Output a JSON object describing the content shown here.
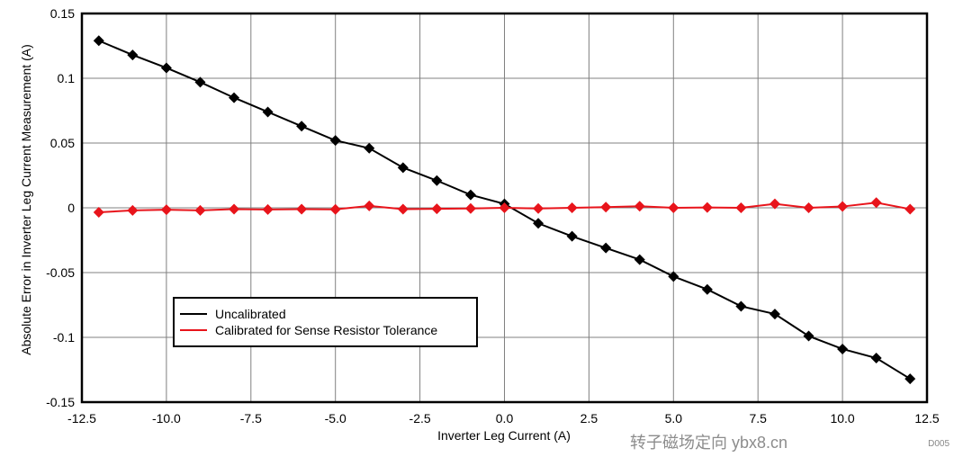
{
  "chart_data": {
    "type": "line",
    "title": "",
    "xlabel": "Inverter Leg Current (A)",
    "ylabel": "Absolute Error in Inverter Leg Current Measurement (A)",
    "xlim": [
      -12.5,
      12.5
    ],
    "ylim": [
      -0.15,
      0.15
    ],
    "xticks": [
      -12.5,
      -10.0,
      -7.5,
      -5.0,
      -2.5,
      0.0,
      2.5,
      5.0,
      7.5,
      10.0,
      12.5
    ],
    "xtick_labels": [
      "-12.5",
      "-10.0",
      "-7.5",
      "-5.0",
      "-2.5",
      "0.0",
      "2.5",
      "5.0",
      "7.5",
      "10.0",
      "12.5"
    ],
    "yticks": [
      0.15,
      0.1,
      0.05,
      0,
      -0.05,
      -0.1,
      -0.15
    ],
    "ytick_labels": [
      "0.15",
      "0.1",
      "0.05",
      "0",
      "-0.05",
      "-0.1",
      "-0.15"
    ],
    "grid": true,
    "legend_position": "lower-left",
    "x": [
      -12,
      -11,
      -10,
      -9,
      -8,
      -7,
      -6,
      -5,
      -4,
      -3,
      -2,
      -1,
      0,
      1,
      2,
      3,
      4,
      5,
      6,
      7,
      8,
      9,
      10,
      11,
      12
    ],
    "series": [
      {
        "name": "Uncalibrated",
        "color": "#000000",
        "marker": "diamond",
        "values": [
          0.129,
          0.118,
          0.108,
          0.097,
          0.085,
          0.074,
          0.063,
          0.052,
          0.046,
          0.031,
          0.021,
          0.01,
          0.003,
          -0.012,
          -0.022,
          -0.031,
          -0.04,
          -0.053,
          -0.063,
          -0.076,
          -0.082,
          -0.099,
          -0.109,
          -0.116,
          -0.132
        ]
      },
      {
        "name": "Calibrated for Sense Resistor Tolerance",
        "color": "#e8141b",
        "marker": "diamond",
        "values": [
          -0.0035,
          -0.002,
          -0.0015,
          -0.002,
          -0.001,
          -0.0013,
          -0.001,
          -0.0012,
          0.0015,
          -0.001,
          -0.0008,
          -0.0005,
          0.0,
          -0.0005,
          0.0,
          0.0005,
          0.0012,
          0.0,
          0.0003,
          0.0,
          0.003,
          0.0,
          0.001,
          0.004,
          -0.001
        ]
      }
    ]
  },
  "figure_id": "D005",
  "watermark": "转子磁场定向 ybx8.cn"
}
